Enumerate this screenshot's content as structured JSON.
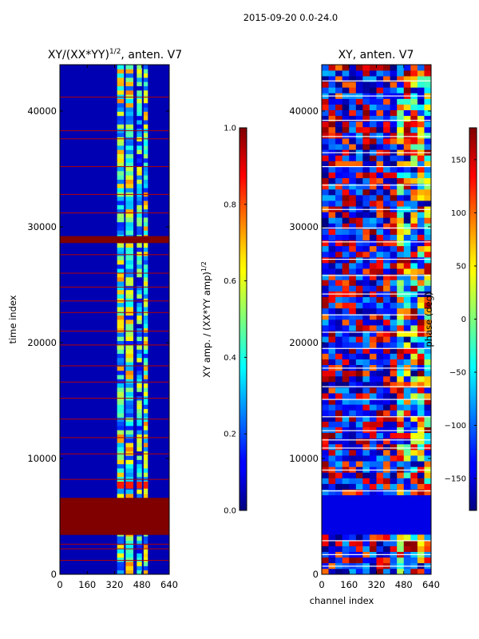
{
  "chart_data": [
    {
      "type": "heatmap",
      "title_base": "XY/(XX*YY)",
      "title_exponent": "1/2",
      "title_suffix": ", anten. V7",
      "xlabel": "",
      "ylabel": "time index",
      "xlim": [
        0,
        640
      ],
      "ylim": [
        0,
        44000
      ],
      "xticks": [
        0,
        160,
        320,
        480,
        640
      ],
      "yticks": [
        0,
        10000,
        20000,
        30000,
        40000
      ],
      "colorbar": {
        "label_base": "XY amp. / (XX*YY amp)",
        "label_exponent": "1/2",
        "range": [
          0.0,
          1.0
        ],
        "ticks": [
          "0.0",
          "0.2",
          "0.4",
          "0.6",
          "0.8",
          "1.0"
        ]
      },
      "background_value": 0.05,
      "active_channel_ranges": [
        [
          335,
          375
        ],
        [
          385,
          430
        ],
        [
          450,
          480
        ],
        [
          490,
          515
        ]
      ],
      "active_rows_value": 0.45,
      "saturated_blocks": [
        [
          3400,
          6600,
          1.0
        ],
        [
          28600,
          29200,
          1.0
        ]
      ],
      "bright_bands": [
        [
          7400,
          8000,
          0.85
        ],
        [
          19400,
          19800,
          0.55
        ],
        [
          30400,
          30800,
          0.5
        ]
      ],
      "flagged_rows": [
        1200,
        2200,
        2600,
        8200,
        10400,
        11800,
        13400,
        15200,
        16600,
        18000,
        19800,
        21000,
        22600,
        23600,
        24800,
        26000,
        27600,
        31200,
        32800,
        35200,
        37600,
        38300,
        41200
      ]
    },
    {
      "type": "heatmap",
      "title": "XY, anten. V7",
      "xlabel": "channel index",
      "ylabel": "",
      "xlim": [
        0,
        640
      ],
      "ylim": [
        0,
        44000
      ],
      "xticks": [
        0,
        160,
        320,
        480,
        640
      ],
      "yticks": [
        0,
        10000,
        20000,
        30000,
        40000
      ],
      "colorbar": {
        "label": "phase (deg)",
        "range": [
          -180,
          180
        ],
        "ticks": [
          "−150",
          "−100",
          "−50",
          "0",
          "50",
          "100",
          "150"
        ]
      },
      "active_channel_range": [
        410,
        640
      ],
      "quiet_block": [
        3400,
        6800
      ],
      "white_gap_rows": [
        700,
        1700,
        2900,
        7200,
        9000,
        10900,
        11600,
        12400,
        13600,
        15100,
        16200,
        17800,
        19500,
        20900,
        22400,
        24200,
        25800,
        27200,
        28700,
        29900,
        31500,
        33600,
        35200,
        36400,
        37800,
        39200,
        41300,
        42600
      ]
    }
  ],
  "suptitle": "2015-09-20 0.0-24.0"
}
